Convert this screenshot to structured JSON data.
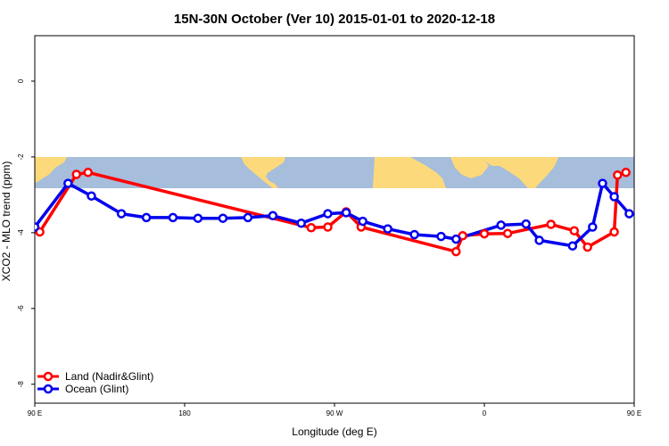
{
  "chart_data": {
    "type": "line",
    "title": "15N-30N October (Ver 10)   2015-01-01 to 2020-12-18",
    "xlabel": "Longitude (deg E)",
    "ylabel": "XCO2 - MLO trend (ppm)",
    "xlim": [
      90,
      450
    ],
    "ylim": [
      -8.5,
      1.2
    ],
    "x_ticks": [
      {
        "value": 90,
        "label": "90 E"
      },
      {
        "value": 180,
        "label": "180"
      },
      {
        "value": 270,
        "label": "90 W"
      },
      {
        "value": 360,
        "label": "0"
      },
      {
        "value": 450,
        "label": "90 E"
      },
      {
        "value": 540,
        "label": "180"
      }
    ],
    "y_ticks": [
      {
        "value": 0,
        "label": "0"
      },
      {
        "value": -2,
        "label": "-2"
      },
      {
        "value": -4,
        "label": "-4"
      },
      {
        "value": -6,
        "label": "-6"
      },
      {
        "value": -8,
        "label": "-8"
      }
    ],
    "map_band": {
      "y_top": -2.08,
      "y_bottom": -2.85,
      "ocean_color": "#a6bddb",
      "land_color": "#fcd97a"
    },
    "legend_position": "bottom-left",
    "series": [
      {
        "name": "Land (Nadir&Glint)",
        "color": "#ff0000",
        "x": [
          93,
          115,
          122,
          256,
          266,
          277,
          286,
          343,
          347,
          360,
          374,
          400,
          414,
          422,
          438,
          440,
          445
        ],
        "y": [
          -3.98,
          -2.46,
          -2.41,
          -3.87,
          -3.85,
          -3.45,
          -3.85,
          -4.5,
          -4.08,
          -4.03,
          -4.02,
          -3.78,
          -3.95,
          -4.38,
          -3.98,
          -2.48,
          -2.41
        ],
        "note": ""
      },
      {
        "name": "Ocean (Glint)",
        "color": "#0000ee",
        "x": [
          90,
          110,
          124,
          142,
          157,
          173,
          188,
          203,
          218,
          233,
          250,
          266,
          277,
          287,
          302,
          318,
          334,
          343,
          370,
          385,
          393,
          413,
          425,
          431,
          438,
          447,
          460,
          474,
          490
        ],
        "y": [
          -3.85,
          -2.7,
          -3.03,
          -3.5,
          -3.6,
          -3.6,
          -3.62,
          -3.62,
          -3.6,
          -3.55,
          -3.75,
          -3.5,
          -3.47,
          -3.7,
          -3.9,
          -4.05,
          -4.1,
          -4.17,
          -3.8,
          -3.77,
          -4.2,
          -4.35,
          -3.85,
          -2.7,
          -3.05,
          -3.5,
          -3.6,
          -3.62,
          -3.6
        ]
      }
    ]
  }
}
